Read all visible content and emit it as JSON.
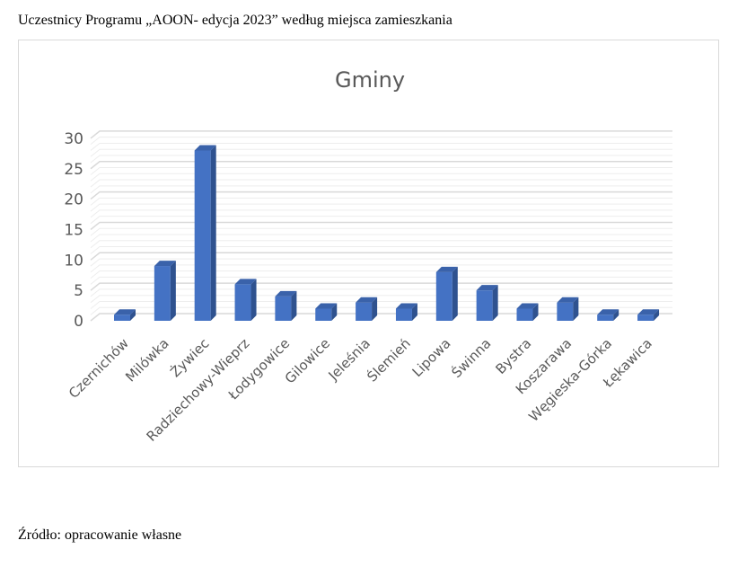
{
  "caption": "Uczestnicy Programu „AOON- edycja 2023” według miejsca zamieszkania",
  "source": "Źródło: opracowanie własne",
  "chart_data": {
    "type": "bar",
    "title": "Gminy",
    "categories": [
      "Czernichów",
      "Milówka",
      "Żywiec",
      "Radziechowy-Wieprz",
      "Łodygowice",
      "Gilowice",
      "Jeleśnia",
      "Ślemień",
      "Lipowa",
      "Świnna",
      "Bystra",
      "Koszarawa",
      "Węgieska-Górka",
      "Łękawica"
    ],
    "values": [
      1,
      9,
      28,
      6,
      4,
      2,
      3,
      2,
      8,
      5,
      2,
      3,
      1,
      1
    ],
    "xlabel": "",
    "ylabel": "",
    "ylim": [
      0,
      30
    ],
    "yticks": [
      0,
      5,
      10,
      15,
      20,
      25,
      30
    ],
    "grid": true,
    "bar_color": "#4472c4",
    "style": "3d-column"
  }
}
